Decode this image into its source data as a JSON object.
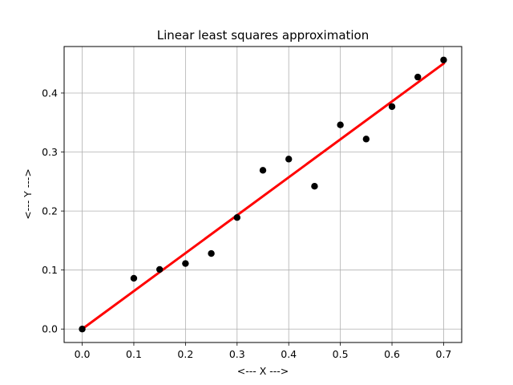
{
  "chart_data": {
    "type": "scatter",
    "title": "Linear least squares approximation",
    "xlabel": "<--- X --->",
    "ylabel": "<--- Y --->",
    "xlim": [
      -0.035,
      0.735
    ],
    "ylim": [
      -0.0228,
      0.4788
    ],
    "xticks": [
      0.0,
      0.1,
      0.2,
      0.3,
      0.4,
      0.5,
      0.6,
      0.7
    ],
    "xtick_labels": [
      "0.0",
      "0.1",
      "0.2",
      "0.3",
      "0.4",
      "0.5",
      "0.6",
      "0.7"
    ],
    "yticks": [
      0.0,
      0.1,
      0.2,
      0.3,
      0.4
    ],
    "ytick_labels": [
      "0.0",
      "0.1",
      "0.2",
      "0.3",
      "0.4"
    ],
    "grid": true,
    "series": [
      {
        "kind": "scatter",
        "color": "#000000",
        "points": [
          {
            "x": 0.0,
            "y": 0.0
          },
          {
            "x": 0.1,
            "y": 0.086
          },
          {
            "x": 0.15,
            "y": 0.101
          },
          {
            "x": 0.2,
            "y": 0.111
          },
          {
            "x": 0.25,
            "y": 0.128
          },
          {
            "x": 0.3,
            "y": 0.189
          },
          {
            "x": 0.35,
            "y": 0.269
          },
          {
            "x": 0.4,
            "y": 0.288
          },
          {
            "x": 0.45,
            "y": 0.242
          },
          {
            "x": 0.5,
            "y": 0.346
          },
          {
            "x": 0.55,
            "y": 0.322
          },
          {
            "x": 0.6,
            "y": 0.377
          },
          {
            "x": 0.65,
            "y": 0.427
          },
          {
            "x": 0.7,
            "y": 0.456
          }
        ]
      },
      {
        "kind": "line",
        "color": "#ff0000",
        "points": [
          {
            "x": 0.0,
            "y": 0.0
          },
          {
            "x": 0.7,
            "y": 0.45
          }
        ]
      }
    ]
  }
}
